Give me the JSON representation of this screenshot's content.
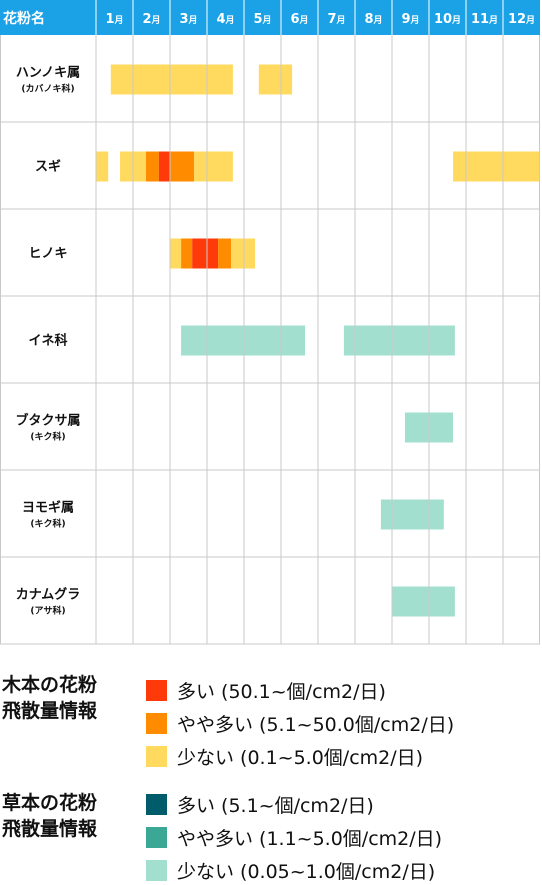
{
  "chart_data": {
    "type": "heatmap",
    "header_label": "花粉名",
    "months": [
      "1",
      "2",
      "3",
      "4",
      "5",
      "6",
      "7",
      "8",
      "9",
      "10",
      "11",
      "12"
    ],
    "month_suffix": "月",
    "rows": [
      {
        "name": "ハンノキ属",
        "sub": "(カバノキ科)",
        "segments": [
          {
            "start": 1.4,
            "end": 4.7,
            "level": "low"
          },
          {
            "start": 5.4,
            "end": 6.3,
            "level": "low"
          }
        ]
      },
      {
        "name": "スギ",
        "sub": "",
        "segments": [
          {
            "start": 1.0,
            "end": 1.33,
            "level": "low"
          },
          {
            "start": 1.65,
            "end": 2.35,
            "level": "low"
          },
          {
            "start": 2.35,
            "end": 2.7,
            "level": "medium"
          },
          {
            "start": 2.7,
            "end": 3.0,
            "level": "high"
          },
          {
            "start": 3.0,
            "end": 3.65,
            "level": "medium"
          },
          {
            "start": 3.65,
            "end": 4.7,
            "level": "low"
          },
          {
            "start": 10.65,
            "end": 13.0,
            "level": "low"
          }
        ]
      },
      {
        "name": "ヒノキ",
        "sub": "",
        "segments": [
          {
            "start": 3.0,
            "end": 3.3,
            "level": "low"
          },
          {
            "start": 3.3,
            "end": 3.6,
            "level": "medium"
          },
          {
            "start": 3.6,
            "end": 4.3,
            "level": "high"
          },
          {
            "start": 4.3,
            "end": 4.65,
            "level": "medium"
          },
          {
            "start": 4.65,
            "end": 5.3,
            "level": "low"
          }
        ]
      },
      {
        "name": "イネ科",
        "sub": "",
        "segments": [
          {
            "start": 3.3,
            "end": 6.65,
            "level": "grass_low"
          },
          {
            "start": 7.7,
            "end": 10.7,
            "level": "grass_low"
          }
        ]
      },
      {
        "name": "ブタクサ属",
        "sub": "(キク科)",
        "segments": [
          {
            "start": 9.35,
            "end": 10.65,
            "level": "grass_low"
          }
        ]
      },
      {
        "name": "ヨモギ属",
        "sub": "(キク科)",
        "segments": [
          {
            "start": 8.7,
            "end": 10.4,
            "level": "grass_low"
          }
        ]
      },
      {
        "name": "カナムグラ",
        "sub": "(アサ科)",
        "segments": [
          {
            "start": 9.0,
            "end": 10.7,
            "level": "grass_low"
          }
        ]
      }
    ],
    "colors": {
      "header_bg": "#1aa1e6",
      "grid": "#c9c9c9",
      "high": "#ff3a0a",
      "medium": "#ff8c00",
      "low": "#ffda5e",
      "grass_high": "#005b6a",
      "grass_medium": "#3ba896",
      "grass_low": "#a2dfce"
    }
  },
  "legend": {
    "tree": {
      "title": "木本の花粉\n飛散量情報",
      "items": [
        {
          "level": "high",
          "label": "多い (50.1~個/cm2/日)"
        },
        {
          "level": "medium",
          "label": "やや多い (5.1~50.0個/cm2/日)"
        },
        {
          "level": "low",
          "label": "少ない (0.1~5.0個/cm2/日)"
        }
      ]
    },
    "grass": {
      "title": "草本の花粉\n飛散量情報",
      "items": [
        {
          "level": "grass_high",
          "label": "多い (5.1~個/cm2/日)"
        },
        {
          "level": "grass_medium",
          "label": "やや多い (1.1~5.0個/cm2/日)"
        },
        {
          "level": "grass_low",
          "label": "少ない (0.05~1.0個/cm2/日)"
        }
      ]
    }
  }
}
